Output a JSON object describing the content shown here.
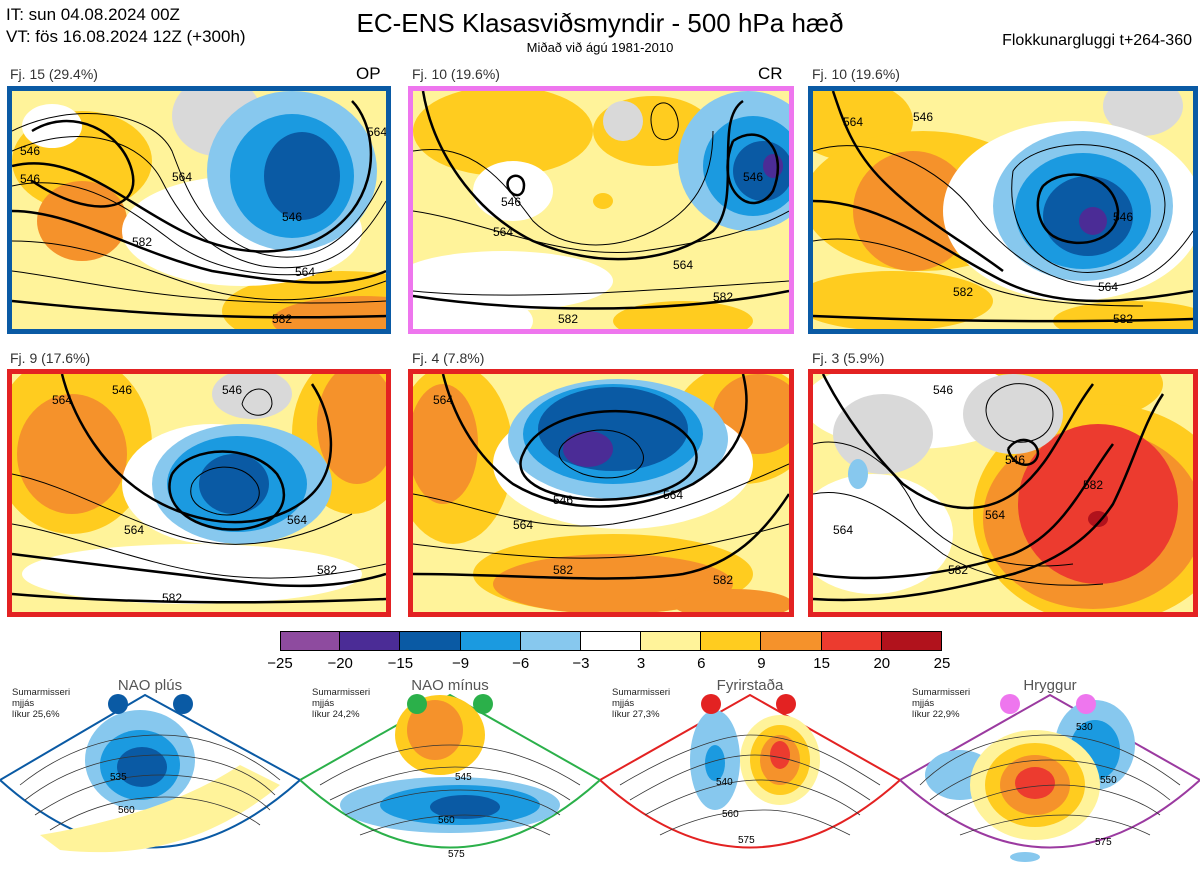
{
  "header": {
    "it_line": "IT: sun 04.08.2024 00Z",
    "vt_line": "VT: fös 16.08.2024 12Z  (+300h)",
    "title": "EC-ENS Klasasviðsmyndir - 500 hPa hæð",
    "subtitle": "Miðað við ágú 1981-2010",
    "window": "Flokkunargluggi t+264-360"
  },
  "panels": [
    {
      "label": "Fj. 15 (29.4%)",
      "tag": "OP",
      "border": "#0a5aa4",
      "contours": [
        "546",
        "546",
        "564",
        "564",
        "564",
        "582",
        "582",
        "546"
      ]
    },
    {
      "label": "Fj. 10 (19.6%)",
      "tag": "CR",
      "border": "#ee76ee",
      "contours": [
        "564",
        "546",
        "546",
        "564",
        "582",
        "582"
      ]
    },
    {
      "label": "Fj. 10 (19.6%)",
      "tag": "",
      "border": "#0a5aa4",
      "contours": [
        "564",
        "546",
        "546",
        "564",
        "582",
        "582"
      ]
    },
    {
      "label": "Fj. 9 (17.6%)",
      "tag": "",
      "border": "#e32222",
      "contours": [
        "564",
        "546",
        "546",
        "564",
        "582",
        "582",
        "564"
      ]
    },
    {
      "label": "Fj. 4 (7.8%)",
      "tag": "",
      "border": "#e32222",
      "contours": [
        "564",
        "546",
        "564",
        "564",
        "582",
        "582"
      ]
    },
    {
      "label": "Fj. 3 (5.9%)",
      "tag": "",
      "border": "#e32222",
      "contours": [
        "546",
        "546",
        "564",
        "582",
        "582",
        "564"
      ]
    }
  ],
  "colorbar": {
    "colors": [
      "#8e4b9f",
      "#4b2c96",
      "#0a5aa4",
      "#1b9ae0",
      "#87c8ee",
      "#ffffff",
      "#fff39a",
      "#ffcc1f",
      "#f5922b",
      "#ec3b2f",
      "#b1121c"
    ],
    "ticks": [
      "−25",
      "−20",
      "−15",
      "−9",
      "−6",
      "−3",
      "3",
      "6",
      "9",
      "15",
      "20",
      "25"
    ]
  },
  "regimes": [
    {
      "name": "NAO plús",
      "season": "Sumarmisseri",
      "stat": "mjjás",
      "prob": "líkur 25,6%",
      "color": "#0a5aa4",
      "labels": [
        "535",
        "560"
      ]
    },
    {
      "name": "NAO mínus",
      "season": "Sumarmisseri",
      "stat": "mjjás",
      "prob": "líkur 24,2%",
      "color": "#2bb04a",
      "labels": [
        "545",
        "560",
        "575"
      ]
    },
    {
      "name": "Fyrirstaða",
      "season": "Sumarmisseri",
      "stat": "mjjás",
      "prob": "líkur 27,3%",
      "color": "#e32222",
      "labels": [
        "540",
        "560",
        "575"
      ]
    },
    {
      "name": "Hryggur",
      "season": "Sumarmisseri",
      "stat": "mjjás",
      "prob": "líkur 22,9%",
      "color": "#9b3aa0",
      "labels": [
        "530",
        "550",
        "575"
      ]
    }
  ]
}
